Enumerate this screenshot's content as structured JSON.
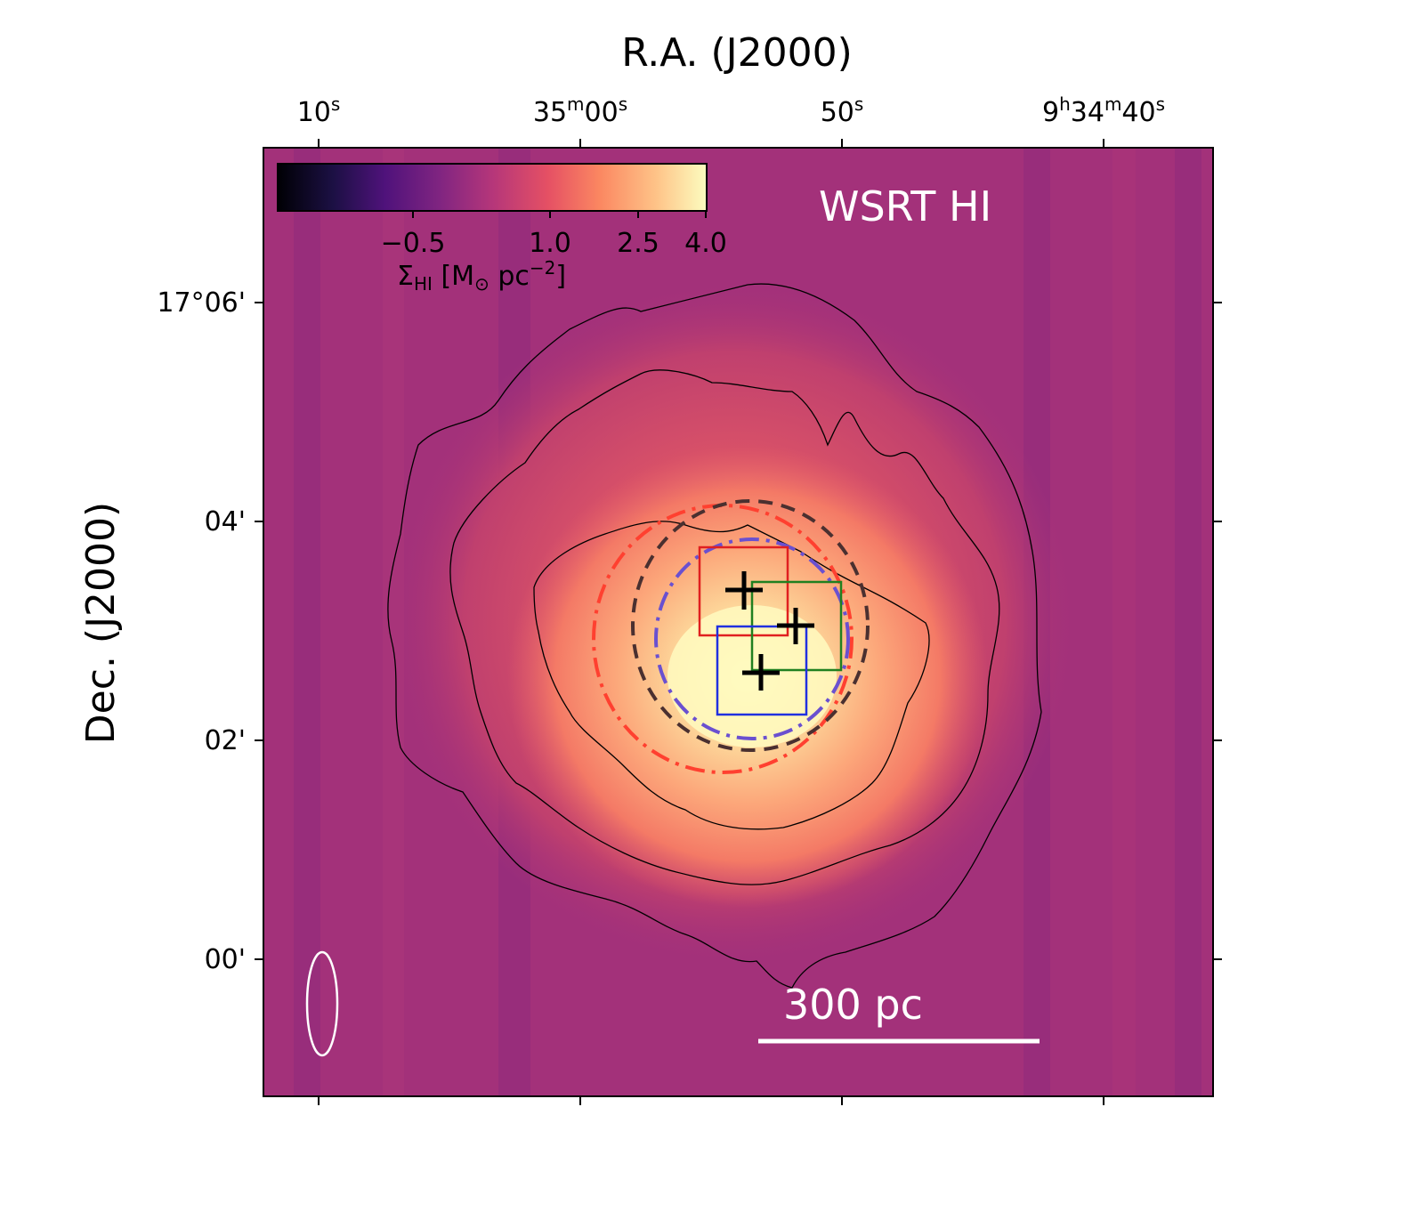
{
  "chart_data": {
    "type": "heatmap",
    "title_top": "R.A. (J2000)",
    "ylabel": "Dec. (J2000)",
    "x_ticks": [
      {
        "label": "10",
        "sup": "s"
      },
      {
        "label": "35",
        "sup": "m",
        "label2": "00",
        "sup2": "s"
      },
      {
        "label": "50",
        "sup": "s"
      },
      {
        "label": "9",
        "sup": "h",
        "label2": "34",
        "sup2": "m",
        "label3": "40",
        "sup3": "s"
      }
    ],
    "y_ticks": [
      "17°06'",
      "04'",
      "02'",
      "00'"
    ],
    "colormap": "magma",
    "colorbar": {
      "ticks": [
        "−0.5",
        "1.0",
        "2.5",
        "4.0"
      ],
      "label": "ΣHI [M⊙ pc−2]",
      "label_main": "Σ",
      "label_sub": "HI",
      "label_mid": " [M",
      "label_sun": "⊙",
      "label_tail": " pc",
      "label_exp": "−2",
      "label_end": "]"
    },
    "annotation": "WSRT HI",
    "scale_bar_label": "300 pc",
    "markers": [
      {
        "type": "cross",
        "id": "cross-1"
      },
      {
        "type": "cross",
        "id": "cross-2"
      },
      {
        "type": "cross",
        "id": "cross-3"
      }
    ],
    "boxes": [
      {
        "color": "#e02020",
        "id": "red"
      },
      {
        "color": "#208020",
        "id": "green"
      },
      {
        "color": "#2030e0",
        "id": "blue"
      }
    ],
    "circles": [
      {
        "color": "#ff4030",
        "style": "dash-dot",
        "id": "red-dashdot"
      },
      {
        "color": "#4a3030",
        "style": "dashed",
        "id": "dark-dashed"
      },
      {
        "color": "#6a50d0",
        "style": "dash-dot",
        "id": "purple-dashdot"
      }
    ],
    "contours": 3,
    "beam": "ellipse"
  }
}
